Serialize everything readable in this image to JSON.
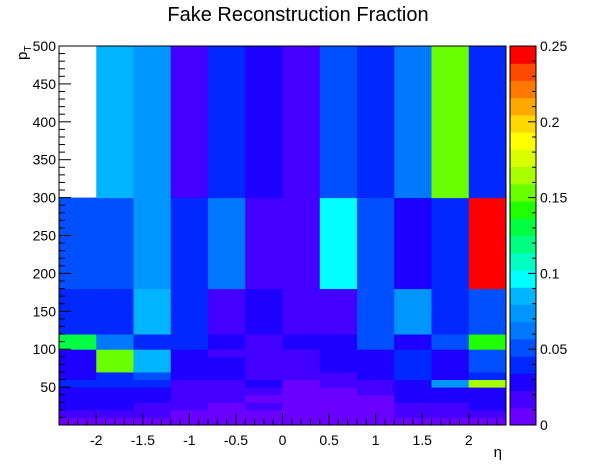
{
  "chart_data": {
    "type": "heatmap",
    "title": "Fake Reconstruction Fraction",
    "xlabel": "η",
    "ylabel": "p",
    "ylabel_subscript": "T",
    "xlim": [
      -2.4,
      2.4
    ],
    "ylim": [
      0,
      500
    ],
    "zlim": [
      0,
      0.25
    ],
    "x_edges": [
      -2.4,
      -2.0,
      -1.6,
      -1.2,
      -0.8,
      -0.4,
      0.0,
      0.4,
      0.8,
      1.2,
      1.6,
      2.0,
      2.4
    ],
    "y_edges": [
      0,
      10,
      20,
      30,
      40,
      50,
      60,
      70,
      80,
      90,
      100,
      120,
      150,
      180,
      200,
      300,
      500
    ],
    "z": [
      [
        0.01,
        0.01,
        0.01,
        0.01,
        0.01,
        0.01,
        0.01,
        0.01,
        0.01,
        0.01,
        0.01,
        0.01
      ],
      [
        0.02,
        0.02,
        0.02,
        0.01,
        0.01,
        0.01,
        0.01,
        0.01,
        0.01,
        0.02,
        0.02,
        0.02
      ],
      [
        0.03,
        0.03,
        0.02,
        0.02,
        0.01,
        0.02,
        0.01,
        0.01,
        0.01,
        0.02,
        0.02,
        0.03
      ],
      [
        0.03,
        0.03,
        0.03,
        0.02,
        0.02,
        0.01,
        0.01,
        0.01,
        0.01,
        0.03,
        0.03,
        0.03
      ],
      [
        0.03,
        0.03,
        0.03,
        0.02,
        0.02,
        0.02,
        0.01,
        0.01,
        0.02,
        0.03,
        0.03,
        0.03
      ],
      [
        0.04,
        0.04,
        0.04,
        0.02,
        0.02,
        0.03,
        0.01,
        0.02,
        0.02,
        0.03,
        0.07,
        0.16
      ],
      [
        0.03,
        0.04,
        0.05,
        0.03,
        0.03,
        0.02,
        0.02,
        0.02,
        0.03,
        0.04,
        0.03,
        0.04
      ],
      [
        0.03,
        0.15,
        0.08,
        0.03,
        0.03,
        0.02,
        0.02,
        0.03,
        0.03,
        0.04,
        0.03,
        0.05
      ],
      [
        0.03,
        0.15,
        0.08,
        0.03,
        0.03,
        0.02,
        0.02,
        0.03,
        0.03,
        0.04,
        0.03,
        0.05
      ],
      [
        0.03,
        0.15,
        0.08,
        0.03,
        0.02,
        0.02,
        0.02,
        0.03,
        0.03,
        0.04,
        0.03,
        0.05
      ],
      [
        0.13,
        0.06,
        0.04,
        0.04,
        0.03,
        0.02,
        0.03,
        0.03,
        0.05,
        0.03,
        0.05,
        0.14
      ],
      [
        0.04,
        0.04,
        0.08,
        0.04,
        0.02,
        0.03,
        0.02,
        0.02,
        0.05,
        0.07,
        0.04,
        0.05
      ],
      [
        0.04,
        0.04,
        0.08,
        0.04,
        0.02,
        0.03,
        0.02,
        0.02,
        0.05,
        0.07,
        0.04,
        0.05
      ],
      [
        0.05,
        0.05,
        0.07,
        0.04,
        0.06,
        0.02,
        0.02,
        0.1,
        0.05,
        0.03,
        0.04,
        0.24
      ],
      [
        0.05,
        0.05,
        0.07,
        0.04,
        0.06,
        0.02,
        0.02,
        0.1,
        0.05,
        0.03,
        0.04,
        0.24
      ],
      [
        0.0,
        0.08,
        0.07,
        0.02,
        0.04,
        0.03,
        0.02,
        0.05,
        0.04,
        0.06,
        0.15,
        0.04
      ]
    ],
    "xticks": [
      -2,
      -1.5,
      -1,
      -0.5,
      0,
      0.5,
      1,
      1.5,
      2
    ],
    "xtick_labels": [
      "-2",
      "-1.5",
      "-1",
      "-0.5",
      "0",
      "0.5",
      "1",
      "1.5",
      "2"
    ],
    "yticks": [
      50,
      100,
      150,
      200,
      250,
      300,
      350,
      400,
      450,
      500
    ],
    "ytick_labels": [
      "50",
      "100",
      "150",
      "200",
      "250",
      "300",
      "350",
      "400",
      "450",
      "500"
    ],
    "zticks": [
      0,
      0.05,
      0.1,
      0.15,
      0.2,
      0.25
    ],
    "ztick_labels": [
      "0",
      "0.05",
      "0.1",
      "0.15",
      "0.2",
      "0.25"
    ],
    "palette": [
      "#6a00ff",
      "#4400ff",
      "#1e00ff",
      "#0028ff",
      "#0050ff",
      "#0078ff",
      "#0096ff",
      "#00b4ff",
      "#00ffff",
      "#00ffc0",
      "#00ff80",
      "#00ff40",
      "#20ff00",
      "#6aff00",
      "#a8ff00",
      "#d8ff00",
      "#ffff00",
      "#ffd800",
      "#ffa800",
      "#ff7800",
      "#ff4800",
      "#ff0000"
    ],
    "grid": false
  }
}
